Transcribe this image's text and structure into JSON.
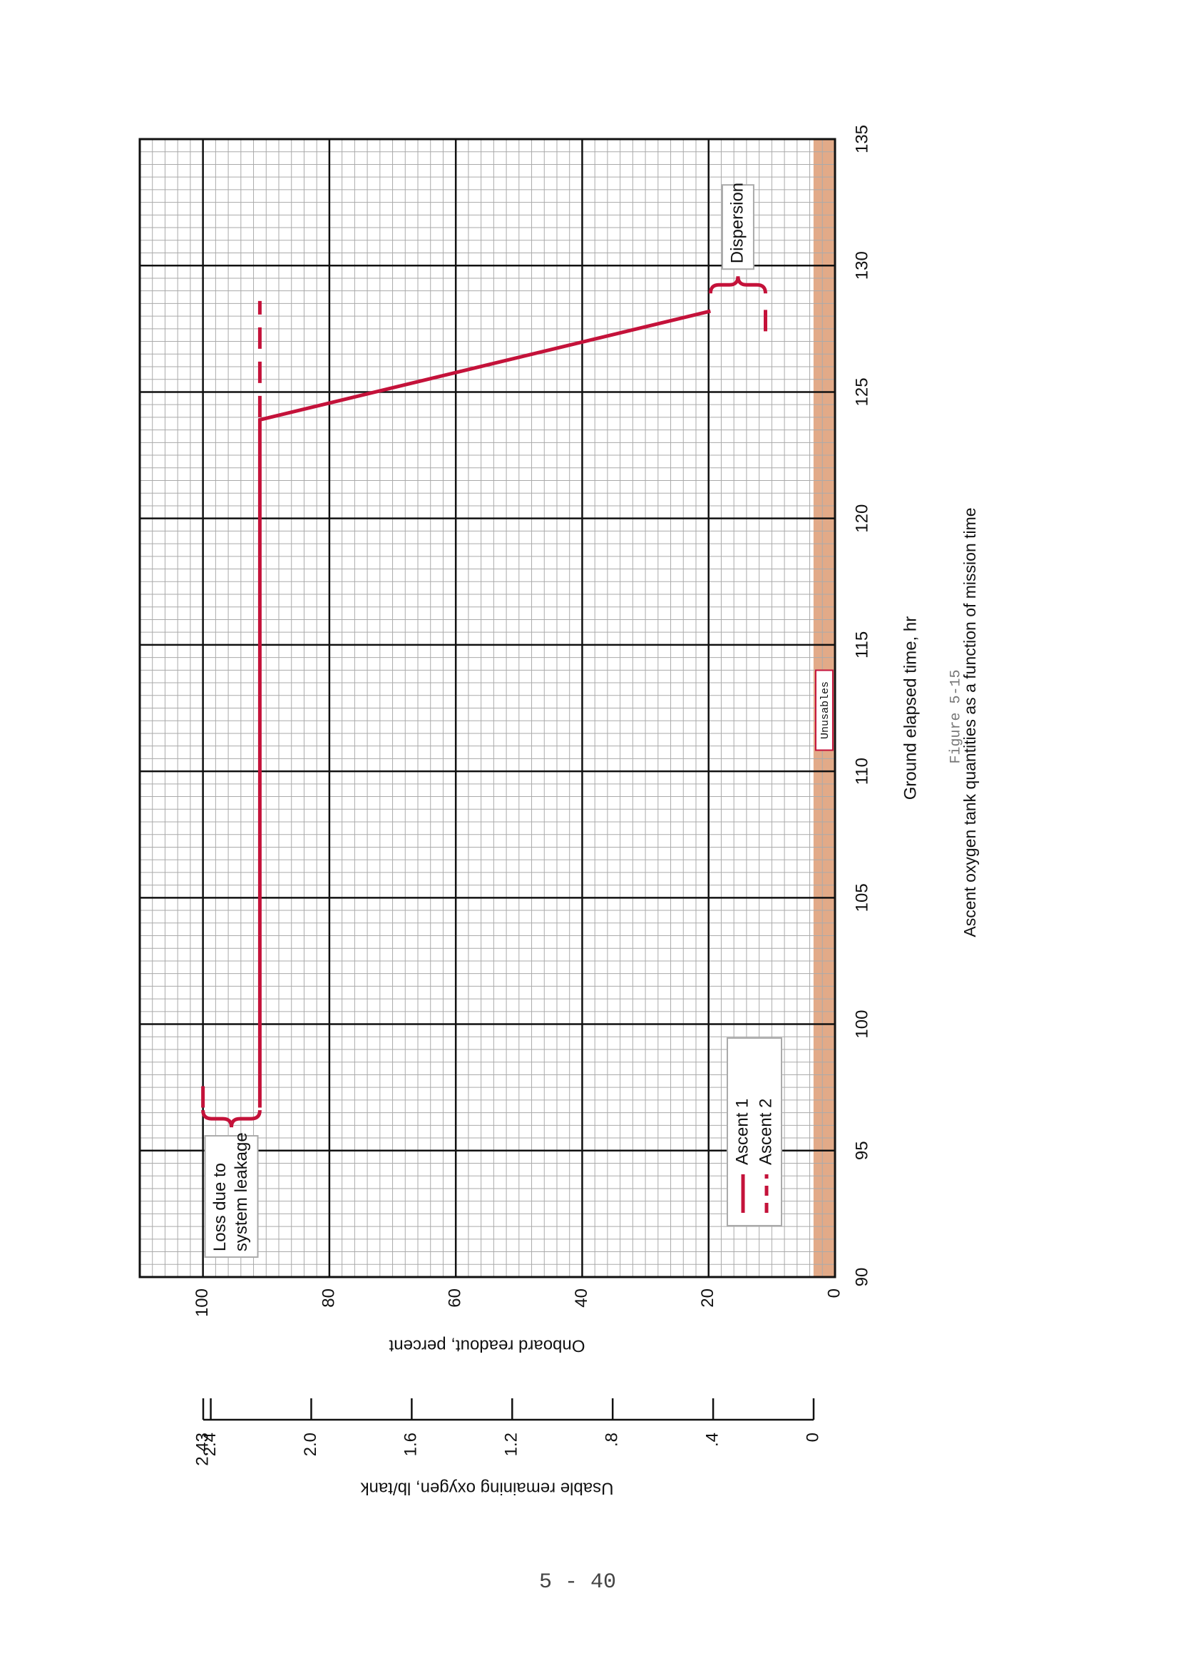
{
  "page_number": "5 - 40",
  "chart_data": {
    "type": "line",
    "rotation": -90,
    "figure_label": "Figure 5-15",
    "caption": "Ascent oxygen tank quantities as a function of mission time",
    "xlabel": "Ground elapsed time, hr",
    "ylabel": "Onboard readout, percent",
    "y2label": "Usable remaining oxygen, lb/tank",
    "xlim": [
      90,
      135
    ],
    "xticks": [
      90,
      95,
      100,
      105,
      110,
      115,
      120,
      125,
      130,
      135
    ],
    "ylim": [
      0,
      110
    ],
    "yticks": [
      0,
      20,
      40,
      60,
      80,
      100
    ],
    "y2lim": [
      0,
      2.43
    ],
    "y2ticks": [
      0,
      {
        "value": 0.4,
        "label": ".4"
      },
      {
        "value": 0.8,
        "label": ".8"
      },
      1.2,
      1.6,
      {
        "value": 2.0,
        "label": "2.0"
      },
      2.4,
      2.43
    ],
    "grid": true,
    "minor_grid": {
      "x": 0.5,
      "y": 2
    },
    "legend": "lower left",
    "series": [
      {
        "name": "Ascent 1",
        "color": "#c4123a",
        "style": "solid",
        "x": [
          96.7,
          123.9,
          128.2
        ],
        "values": [
          91,
          91,
          19.7
        ]
      },
      {
        "name": "Ascent 2",
        "color": "#c4123a",
        "style": "dashed",
        "x": [
          96.7,
          98.0,
          null,
          124.0,
          128.6,
          null,
          127.4,
          128.6
        ],
        "values": [
          100,
          100,
          null,
          91,
          91,
          null,
          11,
          11
        ]
      }
    ],
    "bands": [
      {
        "label": "Unusables",
        "from": 0,
        "to": 3.4,
        "color": "#e2aa88"
      }
    ],
    "braces": [
      {
        "label": [
          "Loss due to",
          "system leakage"
        ],
        "x": 96.6,
        "from": 100,
        "to": 91,
        "side": "left"
      },
      {
        "label": [
          "Dispersion"
        ],
        "x": 128.9,
        "from": 19.7,
        "to": 11,
        "side": "right"
      }
    ]
  }
}
